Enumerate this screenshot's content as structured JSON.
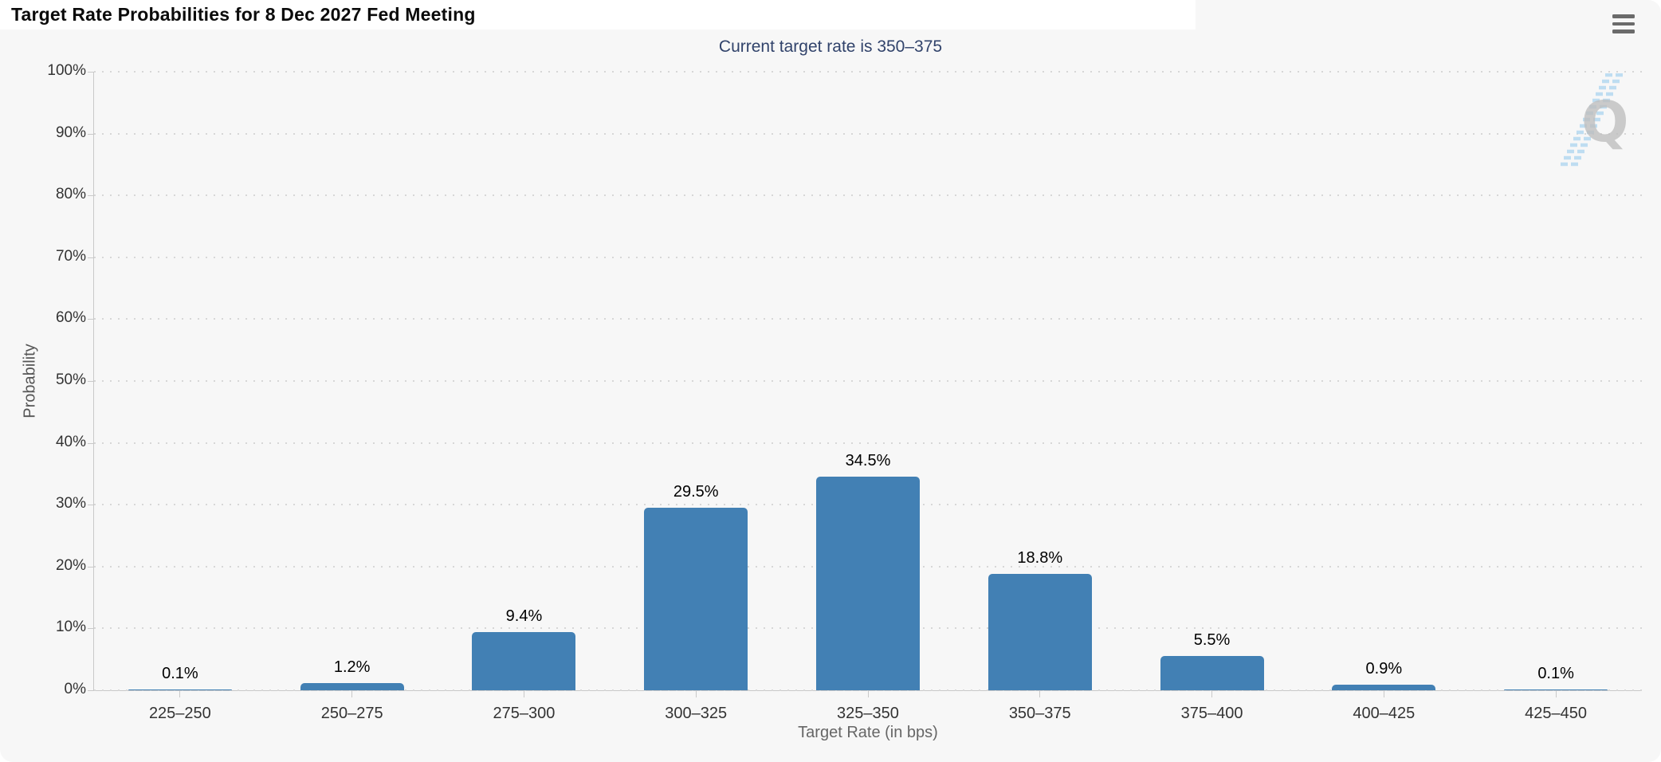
{
  "header": {
    "title": "Target Rate Probabilities for 8 Dec 2027 Fed Meeting",
    "menu_icon": "hamburger-icon"
  },
  "chart_data": {
    "type": "bar",
    "title": "Target Rate Probabilities for 8 Dec 2027 Fed Meeting",
    "subtitle": "Current target rate is 350–375",
    "categories": [
      "225–250",
      "250–275",
      "275–300",
      "300–325",
      "325–350",
      "350–375",
      "375–400",
      "400–425",
      "425–450"
    ],
    "values": [
      0.1,
      1.2,
      9.4,
      29.5,
      34.5,
      18.8,
      5.5,
      0.9,
      0.1
    ],
    "labels": [
      "0.1%",
      "1.2%",
      "9.4%",
      "29.5%",
      "34.5%",
      "18.8%",
      "5.5%",
      "0.9%",
      "0.1%"
    ],
    "xlabel": "Target Rate (in bps)",
    "ylabel": "Probability",
    "ylim": [
      0,
      100
    ],
    "ytick_step": 10,
    "ytick_labels": [
      "0%",
      "10%",
      "20%",
      "30%",
      "40%",
      "50%",
      "60%",
      "70%",
      "80%",
      "90%",
      "100%"
    ],
    "grid": "horizontal-dotted",
    "legend": "none",
    "bar_color": "#4280b4",
    "watermark_letter": "Q"
  },
  "colors": {
    "bar": "#4280b4",
    "panel-bg": "#f7f7f7",
    "subtitle": "#31436b",
    "grid-dot": "#d7d7d7",
    "axis-line": "#c9c9c9",
    "menu-icon": "#6b6b6b",
    "wm-gray": "#bfbfbf",
    "wm-blue": "#b5d9f0"
  }
}
